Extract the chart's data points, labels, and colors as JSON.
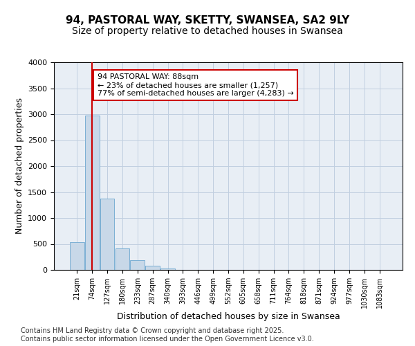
{
  "title": "94, PASTORAL WAY, SKETTY, SWANSEA, SA2 9LY",
  "subtitle": "Size of property relative to detached houses in Swansea",
  "xlabel": "Distribution of detached houses by size in Swansea",
  "ylabel": "Number of detached properties",
  "bar_values": [
    530,
    2970,
    1370,
    420,
    190,
    80,
    30,
    5,
    0,
    0,
    0,
    0,
    0,
    0,
    0,
    0,
    0,
    0,
    0,
    0,
    0
  ],
  "bar_labels": [
    "21sqm",
    "74sqm",
    "127sqm",
    "180sqm",
    "233sqm",
    "287sqm",
    "340sqm",
    "393sqm",
    "446sqm",
    "499sqm",
    "552sqm",
    "605sqm",
    "658sqm",
    "711sqm",
    "764sqm",
    "818sqm",
    "871sqm",
    "924sqm",
    "977sqm",
    "1030sqm",
    "1083sqm"
  ],
  "bar_color": "#c8d8e8",
  "bar_edge_color": "#7bafd4",
  "grid_color": "#c0cfe0",
  "background_color": "#e8eef5",
  "ylim": [
    0,
    4000
  ],
  "yticks": [
    0,
    500,
    1000,
    1500,
    2000,
    2500,
    3000,
    3500,
    4000
  ],
  "property_line_color": "#cc0000",
  "property_line_x": 1.0,
  "annotation_text": "94 PASTORAL WAY: 88sqm\n← 23% of detached houses are smaller (1,257)\n77% of semi-detached houses are larger (4,283) →",
  "annotation_box_edgecolor": "#cc0000",
  "footnote": "Contains HM Land Registry data © Crown copyright and database right 2025.\nContains public sector information licensed under the Open Government Licence v3.0.",
  "title_fontsize": 11,
  "subtitle_fontsize": 10,
  "xlabel_fontsize": 9,
  "ylabel_fontsize": 9,
  "annotation_fontsize": 8,
  "footnote_fontsize": 7
}
